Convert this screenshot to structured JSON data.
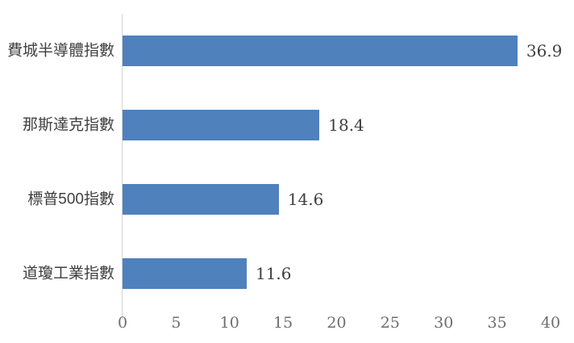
{
  "chart_data": {
    "type": "bar",
    "orientation": "horizontal",
    "title": "",
    "xlabel": "",
    "ylabel": "",
    "categories": [
      "費城半導體指數",
      "那斯達克指數",
      "標普500指數",
      "道瓊工業指數"
    ],
    "values": [
      36.9,
      18.4,
      14.6,
      11.6
    ],
    "value_labels": [
      "36.9",
      "18.4",
      "14.6",
      "11.6"
    ],
    "xlim": [
      0,
      40
    ],
    "x_ticks": [
      0,
      5,
      10,
      15,
      20,
      25,
      30,
      35,
      40
    ],
    "x_tick_labels": [
      "0",
      "5",
      "10",
      "15",
      "20",
      "25",
      "30",
      "35",
      "40"
    ],
    "grid": false,
    "legend": false,
    "data_labels_position": "outside-end",
    "colors": {
      "bar": "#4F81BD",
      "axis_line": "#D6D6D6",
      "category_label": "#3F3F3F",
      "value_label": "#3F3F3F",
      "tick_label": "#6E6E6E",
      "background": "#FFFFFF"
    }
  }
}
